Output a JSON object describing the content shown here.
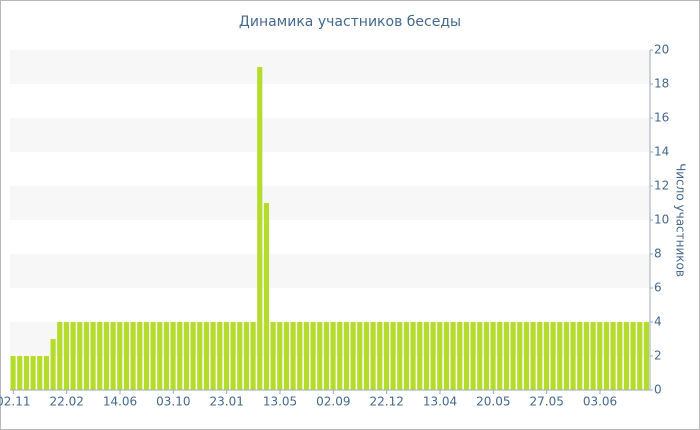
{
  "chart_data": {
    "type": "bar",
    "title": "Динамика участников беседы",
    "y_label": "Число участников",
    "categories": [
      "02.11",
      null,
      null,
      null,
      null,
      null,
      null,
      null,
      "22.02",
      null,
      null,
      null,
      null,
      null,
      null,
      null,
      "14.06",
      null,
      null,
      null,
      null,
      null,
      null,
      null,
      "03.10",
      null,
      null,
      null,
      null,
      null,
      null,
      null,
      "23.01",
      null,
      null,
      null,
      null,
      null,
      null,
      null,
      "13.05",
      null,
      null,
      null,
      null,
      null,
      null,
      null,
      "02.09",
      null,
      null,
      null,
      null,
      null,
      null,
      null,
      "22.12",
      null,
      null,
      null,
      null,
      null,
      null,
      null,
      "13.04",
      null,
      null,
      null,
      null,
      null,
      null,
      null,
      "20.05",
      null,
      null,
      null,
      null,
      null,
      null,
      null,
      "27.05",
      null,
      null,
      null,
      null,
      null,
      null,
      null,
      "03.06",
      null,
      null,
      null,
      null,
      null,
      null,
      null
    ],
    "values": [
      2,
      2,
      2,
      2,
      2,
      2,
      3,
      4,
      4,
      4,
      4,
      4,
      4,
      4,
      4,
      4,
      4,
      4,
      4,
      4,
      4,
      4,
      4,
      4,
      4,
      4,
      4,
      4,
      4,
      4,
      4,
      4,
      4,
      4,
      4,
      4,
      4,
      19,
      11,
      4,
      4,
      4,
      4,
      4,
      4,
      4,
      4,
      4,
      4,
      4,
      4,
      4,
      4,
      4,
      4,
      4,
      4,
      4,
      4,
      4,
      4,
      4,
      4,
      4,
      4,
      4,
      4,
      4,
      4,
      4,
      4,
      4,
      4,
      4,
      4,
      4,
      4,
      4,
      4,
      4,
      4,
      4,
      4,
      4,
      4,
      4,
      4,
      4,
      4,
      4,
      4,
      4,
      4,
      4,
      4,
      4
    ],
    "color": "#b5dc2b",
    "ylim": [
      0,
      20
    ],
    "yticks": [
      0,
      2,
      4,
      6,
      8,
      10,
      12,
      14,
      16,
      18,
      20
    ],
    "grid": true
  }
}
